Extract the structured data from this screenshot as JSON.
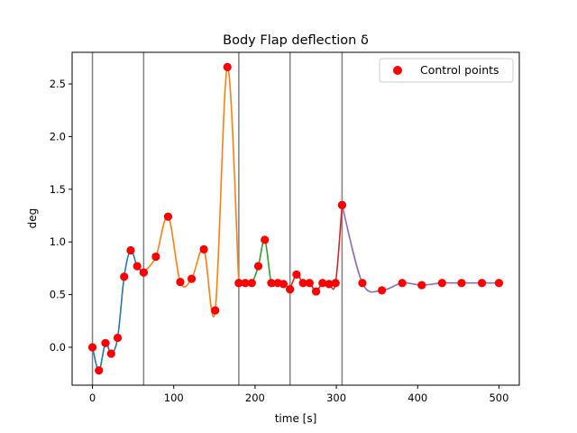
{
  "chart_data": {
    "type": "line",
    "title": "Body Flap deflection δ",
    "xlabel": "time [s]",
    "ylabel": "deg",
    "xlim": [
      -25,
      525
    ],
    "ylim": [
      -0.36,
      2.8
    ],
    "xticks": [
      0,
      100,
      200,
      300,
      400,
      500
    ],
    "xtick_labels": [
      "0",
      "100",
      "200",
      "300",
      "400",
      "500"
    ],
    "yticks": [
      0.0,
      0.5,
      1.0,
      1.5,
      2.0,
      2.5
    ],
    "ytick_labels": [
      "0.0",
      "0.5",
      "1.0",
      "1.5",
      "2.0",
      "2.5"
    ],
    "grid": false,
    "legend": {
      "placement": "top-right",
      "entries": [
        "Control points"
      ]
    },
    "phase_boundaries": [
      0,
      63,
      180,
      243,
      307
    ],
    "phase_boundary_color": "#808080",
    "control_point_color": "#ff0000",
    "series": [
      {
        "color": "#1f77b4",
        "x": [
          0,
          8,
          16,
          23,
          31,
          39,
          47,
          55,
          63
        ],
        "y": [
          0.0,
          -0.22,
          0.04,
          -0.06,
          0.09,
          0.67,
          0.92,
          0.77,
          0.71
        ]
      },
      {
        "color": "#ff7f0e",
        "x": [
          63,
          78,
          93,
          108,
          122,
          137,
          151,
          166,
          180
        ],
        "y": [
          0.71,
          0.86,
          1.24,
          0.62,
          0.65,
          0.93,
          0.35,
          2.66,
          0.61
        ]
      },
      {
        "color": "#2ca02c",
        "x": [
          180,
          188,
          196,
          204,
          212,
          220,
          228,
          235,
          243
        ],
        "y": [
          0.61,
          0.61,
          0.61,
          0.77,
          1.02,
          0.61,
          0.61,
          0.6,
          0.55
        ]
      },
      {
        "color": "#d62728",
        "x": [
          243,
          251,
          259,
          267,
          275,
          283,
          291,
          299,
          307
        ],
        "y": [
          0.55,
          0.69,
          0.61,
          0.61,
          0.53,
          0.61,
          0.6,
          0.61,
          1.35
        ]
      },
      {
        "color": "#9467bd",
        "x": [
          307,
          332,
          356,
          381,
          405,
          430,
          454,
          479,
          500
        ],
        "y": [
          1.35,
          0.61,
          0.54,
          0.61,
          0.59,
          0.61,
          0.61,
          0.61,
          0.61
        ]
      }
    ]
  }
}
